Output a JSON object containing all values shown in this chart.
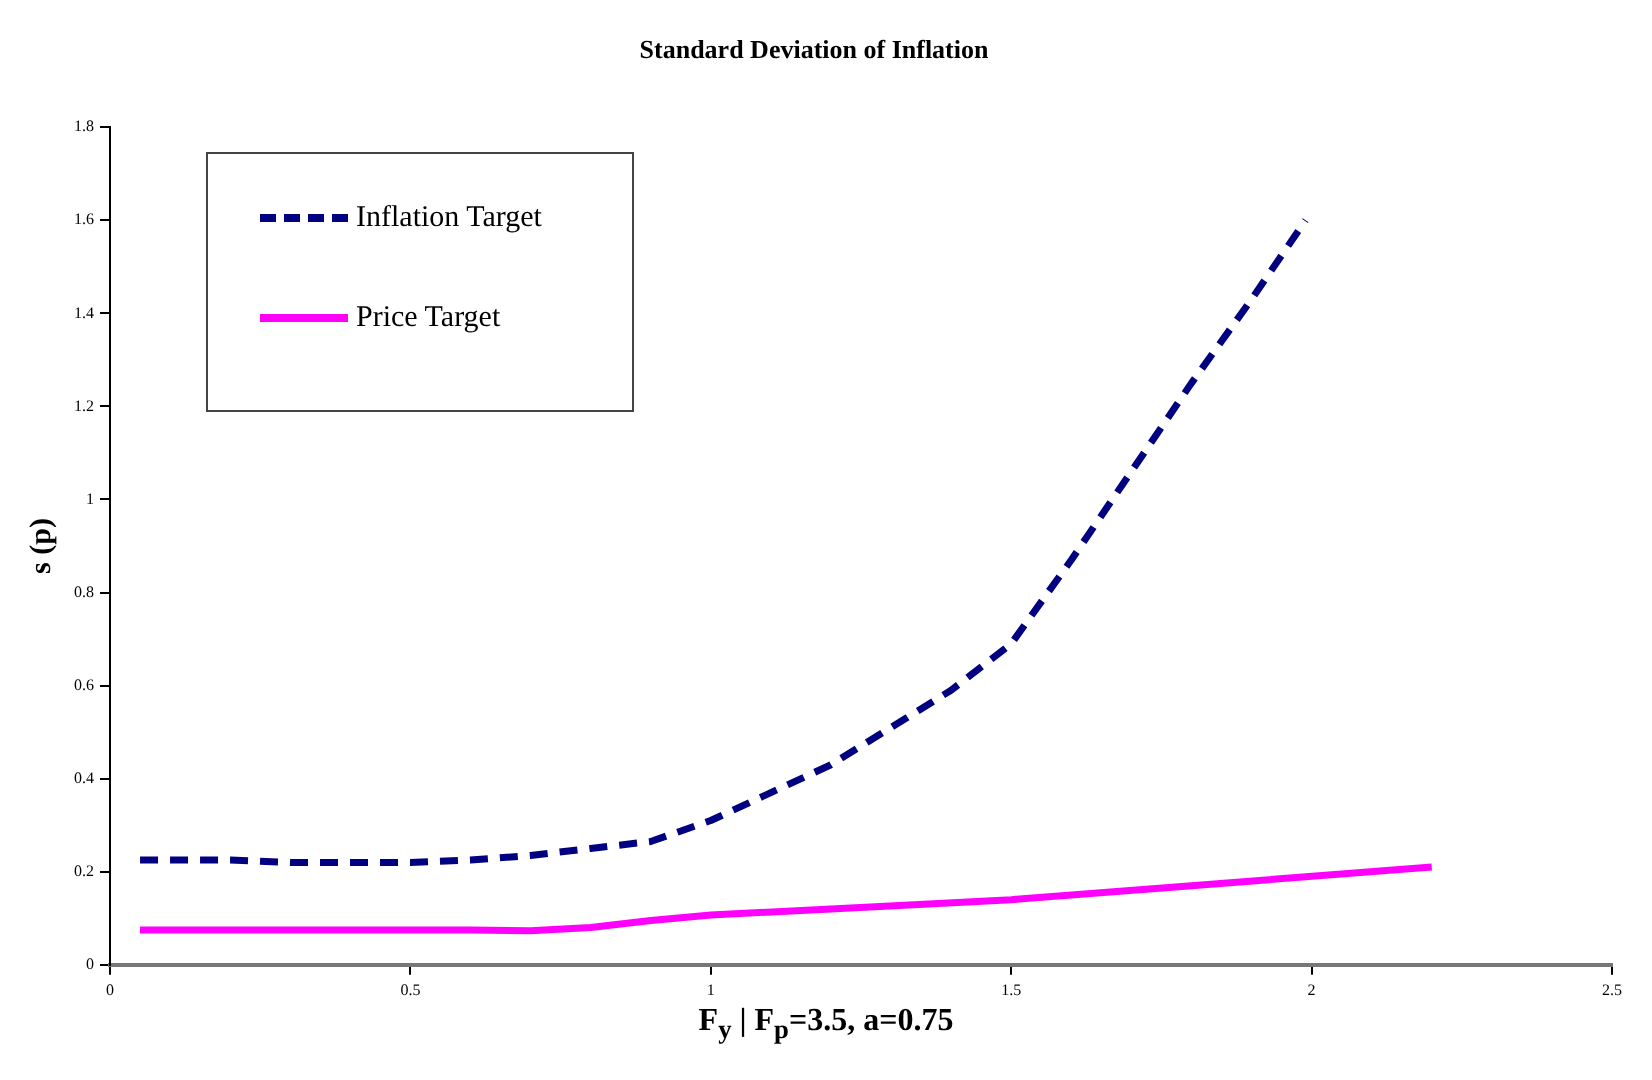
{
  "chart_data": {
    "type": "line",
    "title": "Standard Deviation of Inflation",
    "xlabel": "F$_{y}$ | F$_{p}$=3.5, a=0.75",
    "ylabel": "s (p)",
    "xlim": [
      0,
      2.5
    ],
    "xticks": [
      0,
      0.5,
      1,
      1.5,
      2,
      2.5
    ],
    "ylim": [
      0,
      1.8
    ],
    "yticks": [
      0,
      0.2,
      0.4,
      0.6,
      0.8,
      1,
      1.2,
      1.4,
      1.6,
      1.8
    ],
    "grid": false,
    "legend": "top left",
    "marker": "none",
    "series": [
      {
        "name": "Inflation Target",
        "color": "#000080",
        "line_style": "dashed",
        "x": [
          0.05,
          0.2,
          0.3,
          0.5,
          0.6,
          0.7,
          0.8,
          0.9,
          1.0,
          1.1,
          1.2,
          1.3,
          1.4,
          1.5,
          1.6,
          1.7,
          1.8,
          1.9,
          1.99
        ],
        "values": [
          0.225,
          0.225,
          0.22,
          0.22,
          0.225,
          0.235,
          0.25,
          0.265,
          0.31,
          0.37,
          0.43,
          0.51,
          0.59,
          0.69,
          0.87,
          1.06,
          1.25,
          1.43,
          1.6
        ]
      },
      {
        "name": "Price Target",
        "color": "#ff00ff",
        "line_style": "solid",
        "x": [
          0.05,
          0.3,
          0.6,
          0.7,
          0.8,
          0.9,
          1.0,
          1.2,
          1.5,
          1.8,
          2.2
        ],
        "values": [
          0.075,
          0.075,
          0.075,
          0.073,
          0.08,
          0.095,
          0.107,
          0.12,
          0.14,
          0.17,
          0.21
        ]
      }
    ]
  }
}
